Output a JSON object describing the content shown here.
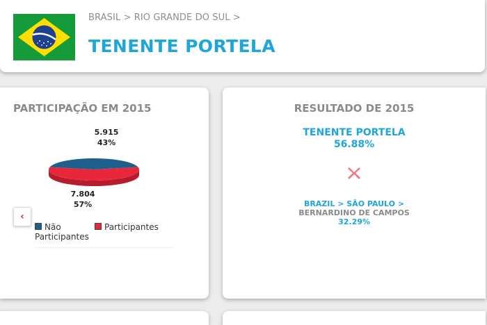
{
  "header": {
    "breadcrumb": "BRASIL > RIO GRANDE DO SUL >",
    "title": "TENENTE PORTELA",
    "flag_icon": "brazil-flag-icon"
  },
  "participation": {
    "title": "PARTICIPAÇÃO EM 2015",
    "top_label": {
      "value": "5.915",
      "percent": "43%"
    },
    "bottom_label": {
      "value": "7.804",
      "percent": "57%"
    },
    "nav_prev_icon": "chevron-left-icon",
    "legend": [
      {
        "label": "Não Participantes",
        "color": "#1f5f8b"
      },
      {
        "label": "Participantes",
        "color": "#e8273b"
      }
    ]
  },
  "chart_data": {
    "type": "pie",
    "title": "PARTICIPAÇÃO EM 2015",
    "categories": [
      "Não Participantes",
      "Participantes"
    ],
    "values": [
      5915,
      7804
    ],
    "percents": [
      43,
      57
    ],
    "colors": [
      "#1f5f8b",
      "#e8273b"
    ],
    "legend_position": "bottom"
  },
  "result": {
    "title": "RESULTADO DE 2015",
    "city1": "TENENTE PORTELA",
    "pct1": "56.88%",
    "vs_icon": "x-icon",
    "breadcrumb2": "BRAZIL > SÃO PAULO >",
    "city2": "BERNARDINO DE CAMPOS",
    "pct2": "32.29%"
  },
  "colors": {
    "accent": "#1ea5d9",
    "muted": "#8a8a8a",
    "red": "#e8273b"
  }
}
